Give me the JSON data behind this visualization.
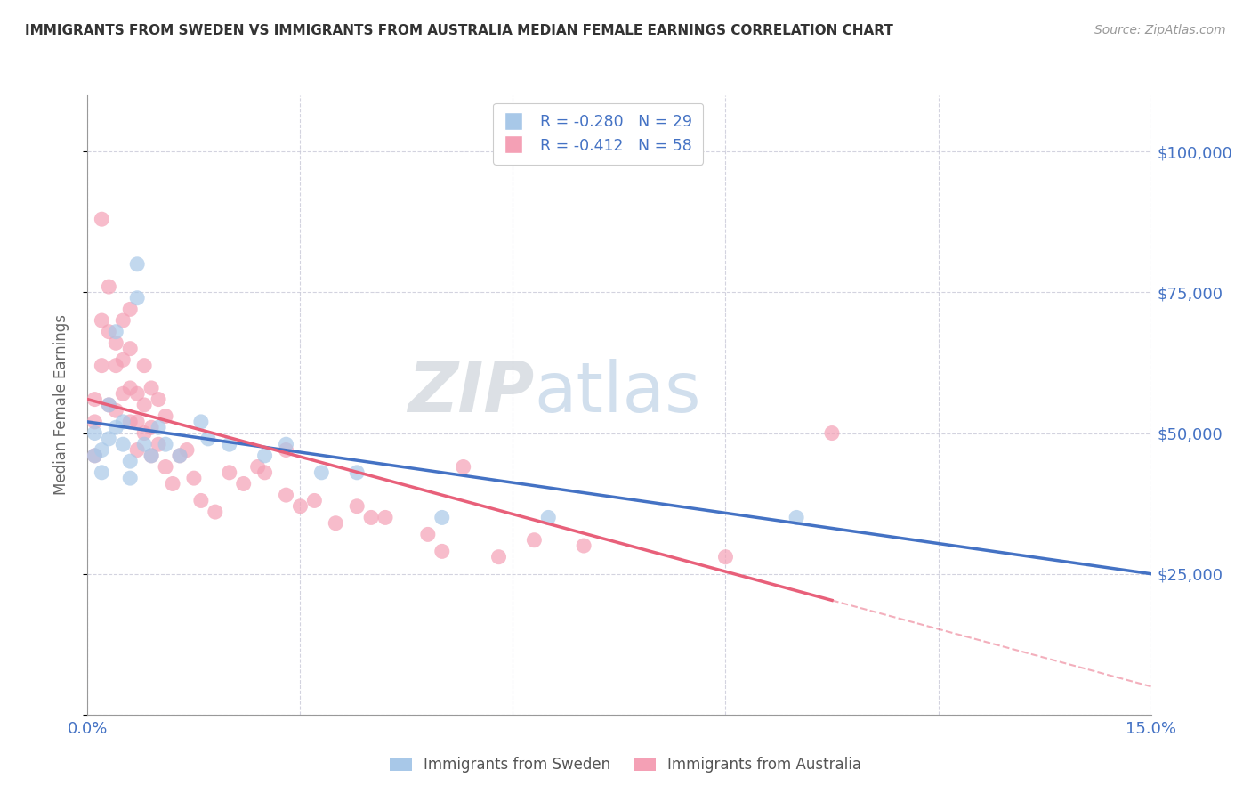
{
  "title": "IMMIGRANTS FROM SWEDEN VS IMMIGRANTS FROM AUSTRALIA MEDIAN FEMALE EARNINGS CORRELATION CHART",
  "source": "Source: ZipAtlas.com",
  "ylabel": "Median Female Earnings",
  "xlim": [
    0.0,
    0.15
  ],
  "ylim": [
    0,
    110000
  ],
  "yticks": [
    0,
    25000,
    50000,
    75000,
    100000
  ],
  "ytick_labels": [
    "",
    "$25,000",
    "$50,000",
    "$75,000",
    "$100,000"
  ],
  "xticks": [
    0.0,
    0.03,
    0.06,
    0.09,
    0.12,
    0.15
  ],
  "xtick_labels": [
    "0.0%",
    "",
    "",
    "",
    "",
    "15.0%"
  ],
  "legend_r_sweden": "R = -0.280",
  "legend_n_sweden": "N = 29",
  "legend_r_australia": "R = -0.412",
  "legend_n_australia": "N = 58",
  "color_sweden": "#a8c8e8",
  "color_australia": "#f4a0b5",
  "color_sweden_line": "#4472c4",
  "color_australia_line": "#e8607a",
  "color_axis_labels": "#4472c4",
  "watermark_zip": "ZIP",
  "watermark_atlas": "atlas",
  "sweden_line_intercept": 52000,
  "sweden_line_slope": -180000,
  "australia_line_intercept": 56000,
  "australia_line_slope": -340000,
  "australia_line_solid_end": 0.105,
  "sweden_x": [
    0.001,
    0.001,
    0.002,
    0.002,
    0.003,
    0.003,
    0.004,
    0.004,
    0.005,
    0.005,
    0.006,
    0.006,
    0.007,
    0.007,
    0.008,
    0.009,
    0.01,
    0.011,
    0.013,
    0.016,
    0.017,
    0.02,
    0.025,
    0.028,
    0.033,
    0.038,
    0.05,
    0.065,
    0.1
  ],
  "sweden_y": [
    50000,
    46000,
    47000,
    43000,
    55000,
    49000,
    68000,
    51000,
    52000,
    48000,
    45000,
    42000,
    80000,
    74000,
    48000,
    46000,
    51000,
    48000,
    46000,
    52000,
    49000,
    48000,
    46000,
    48000,
    43000,
    43000,
    35000,
    35000,
    35000
  ],
  "australia_x": [
    0.001,
    0.001,
    0.001,
    0.002,
    0.002,
    0.002,
    0.003,
    0.003,
    0.003,
    0.004,
    0.004,
    0.004,
    0.005,
    0.005,
    0.005,
    0.006,
    0.006,
    0.006,
    0.006,
    0.007,
    0.007,
    0.007,
    0.008,
    0.008,
    0.008,
    0.009,
    0.009,
    0.009,
    0.01,
    0.01,
    0.011,
    0.011,
    0.012,
    0.013,
    0.014,
    0.015,
    0.016,
    0.018,
    0.02,
    0.022,
    0.024,
    0.025,
    0.028,
    0.028,
    0.03,
    0.032,
    0.035,
    0.038,
    0.04,
    0.042,
    0.048,
    0.05,
    0.053,
    0.058,
    0.063,
    0.07,
    0.09,
    0.105
  ],
  "australia_y": [
    56000,
    52000,
    46000,
    88000,
    70000,
    62000,
    76000,
    68000,
    55000,
    66000,
    62000,
    54000,
    70000,
    63000,
    57000,
    72000,
    65000,
    58000,
    52000,
    57000,
    52000,
    47000,
    62000,
    55000,
    50000,
    58000,
    51000,
    46000,
    56000,
    48000,
    53000,
    44000,
    41000,
    46000,
    47000,
    42000,
    38000,
    36000,
    43000,
    41000,
    44000,
    43000,
    39000,
    47000,
    37000,
    38000,
    34000,
    37000,
    35000,
    35000,
    32000,
    29000,
    44000,
    28000,
    31000,
    30000,
    28000,
    50000
  ]
}
